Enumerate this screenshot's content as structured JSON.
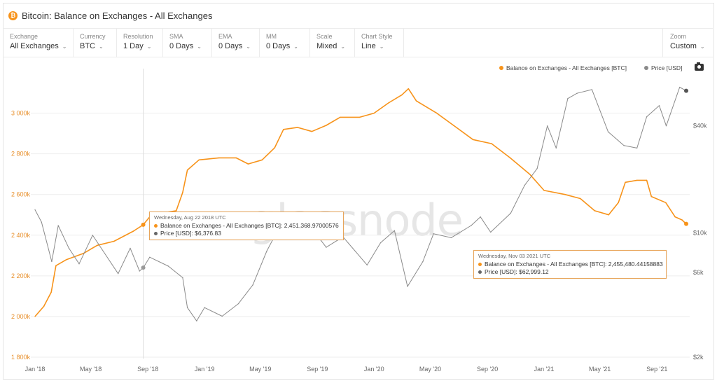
{
  "header": {
    "icon": "bitcoin-icon",
    "icon_glyph": "₿",
    "title": "Bitcoin: Balance on Exchanges - All Exchanges"
  },
  "controls": [
    {
      "label": "Exchange",
      "value": "All Exchanges"
    },
    {
      "label": "Currency",
      "value": "BTC"
    },
    {
      "label": "Resolution",
      "value": "1 Day"
    },
    {
      "label": "SMA",
      "value": "0 Days"
    },
    {
      "label": "EMA",
      "value": "0 Days"
    },
    {
      "label": "MM",
      "value": "0 Days"
    },
    {
      "label": "Scale",
      "value": "Mixed"
    },
    {
      "label": "Chart Style",
      "value": "Line"
    }
  ],
  "zoom": {
    "label": "Zoom",
    "value": "Custom"
  },
  "watermark": "glassnode",
  "colors": {
    "balance": "#f7931a",
    "price": "#8a8a8a",
    "tooltip_border": "#e8a55a"
  },
  "tooltips": [
    {
      "date": "Wednesday, Aug 22 2018 UTC",
      "balance": "Balance on Exchanges - All Exchanges [BTC]: 2,451,368.97000576",
      "price": "Price [USD]: $6,376.83"
    },
    {
      "date": "Wednesday, Nov 03 2021 UTC",
      "balance": "Balance on Exchanges - All Exchanges [BTC]: 2,455,480.44158883",
      "price": "Price [USD]: $62,999.12"
    }
  ],
  "chart_data": {
    "type": "line",
    "title": "Bitcoin: Balance on Exchanges - All Exchanges",
    "legend_position": "top-right",
    "grid": "horizontal",
    "left_axis": {
      "ticks": [
        1800000,
        2000000,
        2200000,
        2400000,
        2600000,
        2800000,
        3000000
      ],
      "tick_labels": [
        "1 800k",
        "2 000k",
        "2 200k",
        "2 400k",
        "2 600k",
        "2 800k",
        "3 000k"
      ],
      "range": [
        1800000,
        3150000
      ]
    },
    "right_axis": {
      "scale": "log",
      "ticks": [
        2000,
        6000,
        10000,
        40000
      ],
      "tick_labels": [
        "$2k",
        "$6k",
        "$10k",
        "$40k"
      ],
      "range": [
        2000,
        70000
      ]
    },
    "x_axis": {
      "tick_labels": [
        "Jan '18",
        "May '18",
        "Sep '18",
        "Jan '19",
        "May '19",
        "Sep '19",
        "Jan '20",
        "May '20",
        "Sep '20",
        "Jan '21",
        "May '21",
        "Sep '21"
      ],
      "tick_dates": [
        "2018-01-01",
        "2018-05-01",
        "2018-09-01",
        "2019-01-01",
        "2019-05-01",
        "2019-09-01",
        "2020-01-01",
        "2020-05-01",
        "2020-09-01",
        "2021-01-01",
        "2021-05-01",
        "2021-09-01"
      ],
      "range": [
        "2018-01-01",
        "2021-11-06"
      ]
    },
    "series": [
      {
        "name": "Balance on Exchanges - All Exchanges [BTC]",
        "axis": "left",
        "points": [
          [
            "2018-01-01",
            2000000
          ],
          [
            "2018-01-20",
            2050000
          ],
          [
            "2018-02-05",
            2120000
          ],
          [
            "2018-02-15",
            2250000
          ],
          [
            "2018-03-10",
            2280000
          ],
          [
            "2018-04-15",
            2310000
          ],
          [
            "2018-05-15",
            2350000
          ],
          [
            "2018-06-20",
            2370000
          ],
          [
            "2018-08-01",
            2420000
          ],
          [
            "2018-08-22",
            2451369
          ],
          [
            "2018-09-05",
            2490000
          ],
          [
            "2018-10-05",
            2510000
          ],
          [
            "2018-11-01",
            2520000
          ],
          [
            "2018-11-15",
            2610000
          ],
          [
            "2018-11-25",
            2720000
          ],
          [
            "2018-12-20",
            2770000
          ],
          [
            "2019-02-01",
            2780000
          ],
          [
            "2019-03-10",
            2780000
          ],
          [
            "2019-04-05",
            2750000
          ],
          [
            "2019-05-05",
            2770000
          ],
          [
            "2019-06-01",
            2830000
          ],
          [
            "2019-06-20",
            2920000
          ],
          [
            "2019-07-20",
            2930000
          ],
          [
            "2019-08-20",
            2910000
          ],
          [
            "2019-09-20",
            2940000
          ],
          [
            "2019-10-20",
            2980000
          ],
          [
            "2019-12-01",
            2980000
          ],
          [
            "2020-01-01",
            3000000
          ],
          [
            "2020-02-01",
            3050000
          ],
          [
            "2020-03-01",
            3090000
          ],
          [
            "2020-03-15",
            3120000
          ],
          [
            "2020-04-01",
            3060000
          ],
          [
            "2020-05-15",
            3000000
          ],
          [
            "2020-06-20",
            2940000
          ],
          [
            "2020-08-01",
            2870000
          ],
          [
            "2020-09-10",
            2850000
          ],
          [
            "2020-10-20",
            2780000
          ],
          [
            "2020-12-01",
            2700000
          ],
          [
            "2021-01-01",
            2620000
          ],
          [
            "2021-02-15",
            2600000
          ],
          [
            "2021-03-20",
            2580000
          ],
          [
            "2021-04-20",
            2520000
          ],
          [
            "2021-05-20",
            2500000
          ],
          [
            "2021-06-10",
            2560000
          ],
          [
            "2021-06-25",
            2660000
          ],
          [
            "2021-07-20",
            2670000
          ],
          [
            "2021-08-10",
            2670000
          ],
          [
            "2021-08-20",
            2590000
          ],
          [
            "2021-09-20",
            2560000
          ],
          [
            "2021-10-10",
            2490000
          ],
          [
            "2021-10-25",
            2475000
          ],
          [
            "2021-11-03",
            2455480
          ]
        ]
      },
      {
        "name": "Price [USD]",
        "axis": "right",
        "points": [
          [
            "2018-01-01",
            13500
          ],
          [
            "2018-01-15",
            11500
          ],
          [
            "2018-02-06",
            6900
          ],
          [
            "2018-02-20",
            11000
          ],
          [
            "2018-03-15",
            8200
          ],
          [
            "2018-04-06",
            6700
          ],
          [
            "2018-05-05",
            9700
          ],
          [
            "2018-06-29",
            5900
          ],
          [
            "2018-07-25",
            8200
          ],
          [
            "2018-08-14",
            6100
          ],
          [
            "2018-08-22",
            6377
          ],
          [
            "2018-09-05",
            7300
          ],
          [
            "2018-10-15",
            6500
          ],
          [
            "2018-11-15",
            5600
          ],
          [
            "2018-11-25",
            3800
          ],
          [
            "2018-12-15",
            3200
          ],
          [
            "2019-01-01",
            3800
          ],
          [
            "2019-02-08",
            3400
          ],
          [
            "2019-03-15",
            4000
          ],
          [
            "2019-04-15",
            5100
          ],
          [
            "2019-05-15",
            7900
          ],
          [
            "2019-06-26",
            12800
          ],
          [
            "2019-07-20",
            10200
          ],
          [
            "2019-08-06",
            11800
          ],
          [
            "2019-09-20",
            8300
          ],
          [
            "2019-10-26",
            9500
          ],
          [
            "2019-12-17",
            6600
          ],
          [
            "2020-01-15",
            8800
          ],
          [
            "2020-02-14",
            10300
          ],
          [
            "2020-03-13",
            5000
          ],
          [
            "2020-04-15",
            6900
          ],
          [
            "2020-05-08",
            9900
          ],
          [
            "2020-06-15",
            9400
          ],
          [
            "2020-07-28",
            11000
          ],
          [
            "2020-08-17",
            12300
          ],
          [
            "2020-09-08",
            10100
          ],
          [
            "2020-10-21",
            12900
          ],
          [
            "2020-11-20",
            18500
          ],
          [
            "2020-12-17",
            23000
          ],
          [
            "2021-01-08",
            40000
          ],
          [
            "2021-01-27",
            30000
          ],
          [
            "2021-02-21",
            57000
          ],
          [
            "2021-03-13",
            61000
          ],
          [
            "2021-04-14",
            64000
          ],
          [
            "2021-05-19",
            37000
          ],
          [
            "2021-06-22",
            31000
          ],
          [
            "2021-07-20",
            30000
          ],
          [
            "2021-08-10",
            45000
          ],
          [
            "2021-09-06",
            52000
          ],
          [
            "2021-09-21",
            40000
          ],
          [
            "2021-10-20",
            66000
          ],
          [
            "2021-11-03",
            62999
          ]
        ]
      }
    ]
  }
}
